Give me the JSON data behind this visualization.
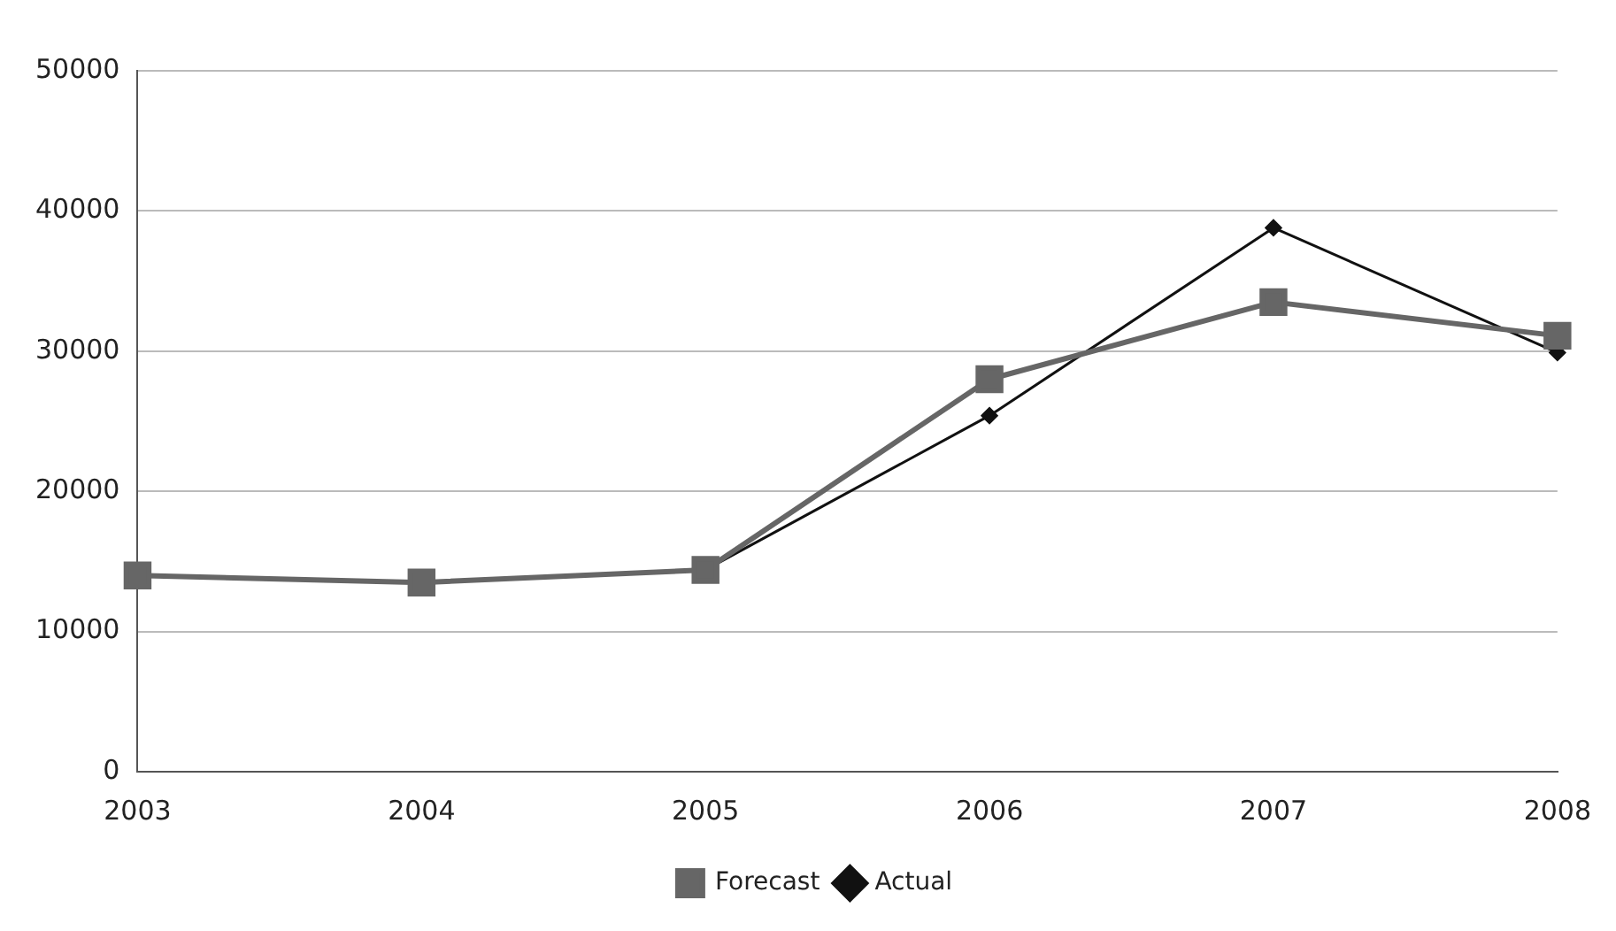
{
  "chart_data": {
    "type": "line",
    "categories": [
      "2003",
      "2004",
      "2005",
      "2006",
      "2007",
      "2008"
    ],
    "series": [
      {
        "name": "Actual",
        "color": "#111111",
        "marker": "diamond",
        "values": [
          14000,
          13500,
          14400,
          25400,
          38800,
          29900
        ]
      },
      {
        "name": "Forecast",
        "color": "#666666",
        "marker": "square",
        "values": [
          14000,
          13500,
          14400,
          28000,
          33500,
          31100
        ]
      }
    ],
    "ylim": [
      0,
      50000
    ],
    "yticks": [
      0,
      10000,
      20000,
      30000,
      40000,
      50000
    ],
    "grid": "y",
    "legend": "bottom"
  }
}
